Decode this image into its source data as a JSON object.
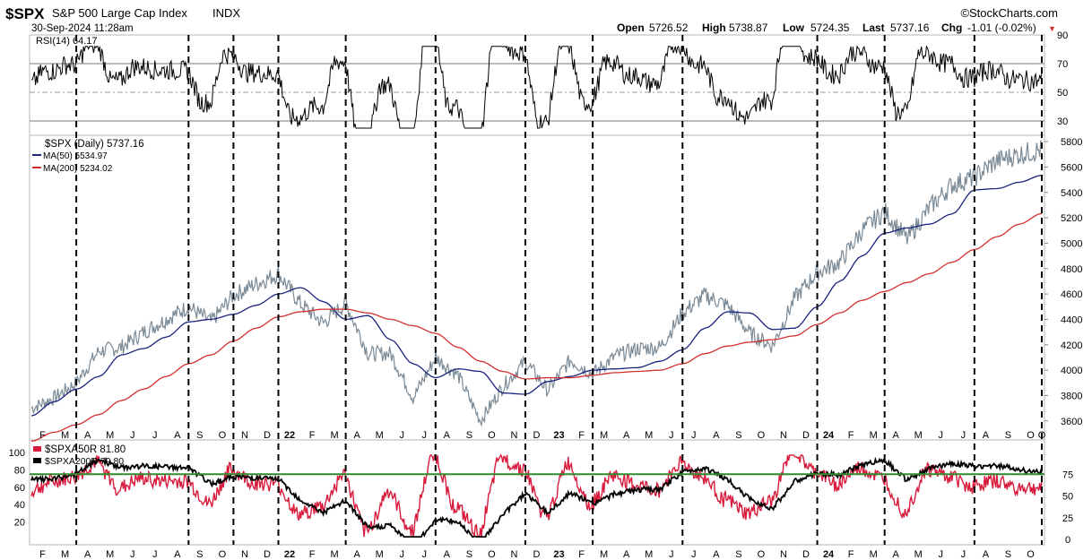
{
  "header": {
    "symbol": "$SPX",
    "name": "S&P 500 Large Cap Index",
    "exchange": "INDX",
    "brand": "©StockCharts.com",
    "date": "30-Sep-2024 11:28am",
    "open_label": "Open",
    "open": "5726.52",
    "high_label": "High",
    "high": "5738.87",
    "low_label": "Low",
    "low": "5724.35",
    "last_label": "Last",
    "last": "5737.16",
    "chg_label": "Chg",
    "chg": "-1.01 (-0.02%)",
    "chg_arrow": "▼"
  },
  "chart_data": [
    {
      "type": "line",
      "panel": "rsi",
      "legend": "RSI(14) 64.17",
      "ylim": [
        20,
        90
      ],
      "yticks": [
        "90",
        "70",
        "50",
        "30"
      ],
      "reference_lines": [
        70,
        50,
        30
      ],
      "series": [
        {
          "name": "RSI(14)",
          "color": "#000000",
          "last": 64.17
        }
      ]
    },
    {
      "type": "line",
      "panel": "price",
      "legends": [
        "$SPX (Daily) 5737.16",
        "MA(50) 5534.97",
        "MA(200) 5234.02"
      ],
      "ylim": [
        3450,
        5850
      ],
      "yticks": [
        "5800",
        "5600",
        "5400",
        "5200",
        "5000",
        "4800",
        "4600",
        "4400",
        "4200",
        "4000",
        "3800",
        "3600"
      ],
      "x": [
        "2021-01",
        "2021-02",
        "2021-03",
        "2021-04",
        "2021-05",
        "2021-06",
        "2021-07",
        "2021-08",
        "2021-09",
        "2021-10",
        "2021-11",
        "2021-12",
        "2022-01",
        "2022-02",
        "2022-03",
        "2022-04",
        "2022-05",
        "2022-06",
        "2022-07",
        "2022-08",
        "2022-09",
        "2022-10",
        "2022-11",
        "2022-12",
        "2023-01",
        "2023-02",
        "2023-03",
        "2023-04",
        "2023-05",
        "2023-06",
        "2023-07",
        "2023-08",
        "2023-09",
        "2023-10",
        "2023-11",
        "2023-12",
        "2024-01",
        "2024-02",
        "2024-03",
        "2024-04",
        "2024-05",
        "2024-06",
        "2024-07",
        "2024-08",
        "2024-09",
        "2024-09-30"
      ],
      "series": [
        {
          "name": "$SPX (Daily)",
          "color": "#7a8a96",
          "values": [
            3700,
            3780,
            3900,
            4150,
            4180,
            4300,
            4400,
            4500,
            4380,
            4590,
            4680,
            4760,
            4520,
            4370,
            4530,
            4130,
            4130,
            3780,
            4100,
            3960,
            3600,
            3870,
            4070,
            3840,
            4080,
            3970,
            4110,
            4170,
            4180,
            4450,
            4590,
            4510,
            4290,
            4190,
            4570,
            4770,
            4850,
            5100,
            5250,
            5030,
            5280,
            5460,
            5520,
            5650,
            5700,
            5737
          ]
        },
        {
          "name": "MA(50)",
          "color": "#1a237e",
          "values": [
            3640,
            3750,
            3850,
            3950,
            4120,
            4170,
            4260,
            4380,
            4400,
            4440,
            4510,
            4600,
            4650,
            4540,
            4400,
            4430,
            4240,
            4050,
            3940,
            4010,
            3990,
            3820,
            3810,
            3910,
            3950,
            4000,
            4010,
            4020,
            4070,
            4160,
            4330,
            4460,
            4450,
            4320,
            4330,
            4500,
            4700,
            4900,
            5080,
            5120,
            5150,
            5230,
            5420,
            5430,
            5480,
            5535
          ]
        },
        {
          "name": "MA(200)",
          "color": "#d32f2f",
          "values": [
            3440,
            3510,
            3570,
            3650,
            3760,
            3850,
            3950,
            4050,
            4120,
            4230,
            4330,
            4420,
            4460,
            4480,
            4480,
            4450,
            4400,
            4350,
            4290,
            4180,
            4070,
            3990,
            3930,
            3940,
            3940,
            3960,
            3980,
            3990,
            4000,
            4050,
            4130,
            4190,
            4220,
            4240,
            4270,
            4360,
            4450,
            4550,
            4620,
            4690,
            4760,
            4850,
            4950,
            5050,
            5150,
            5234
          ]
        }
      ]
    },
    {
      "type": "line",
      "panel": "breadth",
      "legends": [
        "$SPXA50R 81.80",
        "$SPXA200R 79.80"
      ],
      "ylim_left": [
        0,
        100
      ],
      "yticks_left": [
        "100",
        "80",
        "60",
        "40",
        "20"
      ],
      "yticks_right": [
        "75",
        "50",
        "25",
        "0"
      ],
      "reference_line": 75,
      "reference_color": "#2e8b2e",
      "series": [
        {
          "name": "$SPXA50R",
          "color": "#d81b3c",
          "last": 81.8
        },
        {
          "name": "$SPXA200R",
          "color": "#000000",
          "last": 79.8
        }
      ]
    }
  ],
  "x_axis": {
    "labels": [
      "F",
      "M",
      "A",
      "M",
      "J",
      "J",
      "A",
      "S",
      "O",
      "N",
      "D",
      "22",
      "F",
      "M",
      "A",
      "M",
      "J",
      "J",
      "A",
      "S",
      "O",
      "N",
      "D",
      "23",
      "F",
      "M",
      "A",
      "M",
      "J",
      "J",
      "A",
      "S",
      "O",
      "N",
      "D",
      "24",
      "F",
      "M",
      "A",
      "M",
      "J",
      "J",
      "A",
      "S",
      "O"
    ],
    "bold": [
      "22",
      "23",
      "24"
    ],
    "markers": [
      "A",
      "S",
      "N",
      "22",
      "A",
      "A",
      "D",
      "F",
      "A",
      "24",
      "A",
      "J",
      "O"
    ]
  }
}
